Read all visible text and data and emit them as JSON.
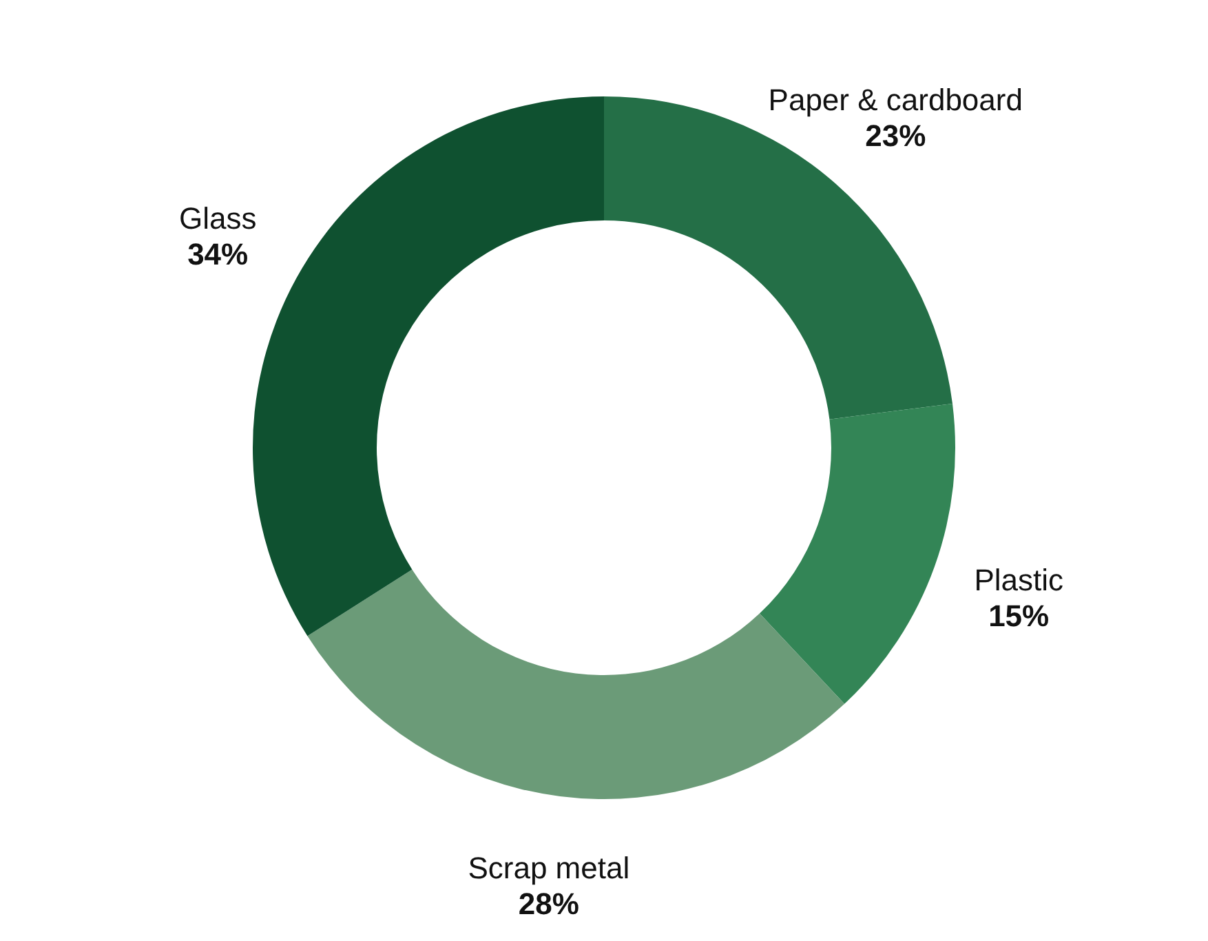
{
  "chart_data": {
    "type": "donut",
    "categories": [
      "Paper & cardboard",
      "Plastic",
      "Scrap metal",
      "Glass"
    ],
    "values": [
      23,
      15,
      28,
      34
    ],
    "value_labels": [
      "23%",
      "15%",
      "28%",
      "34%"
    ],
    "colors": [
      "#246f47",
      "#338556",
      "#6b9b78",
      "#0f5130"
    ]
  }
}
